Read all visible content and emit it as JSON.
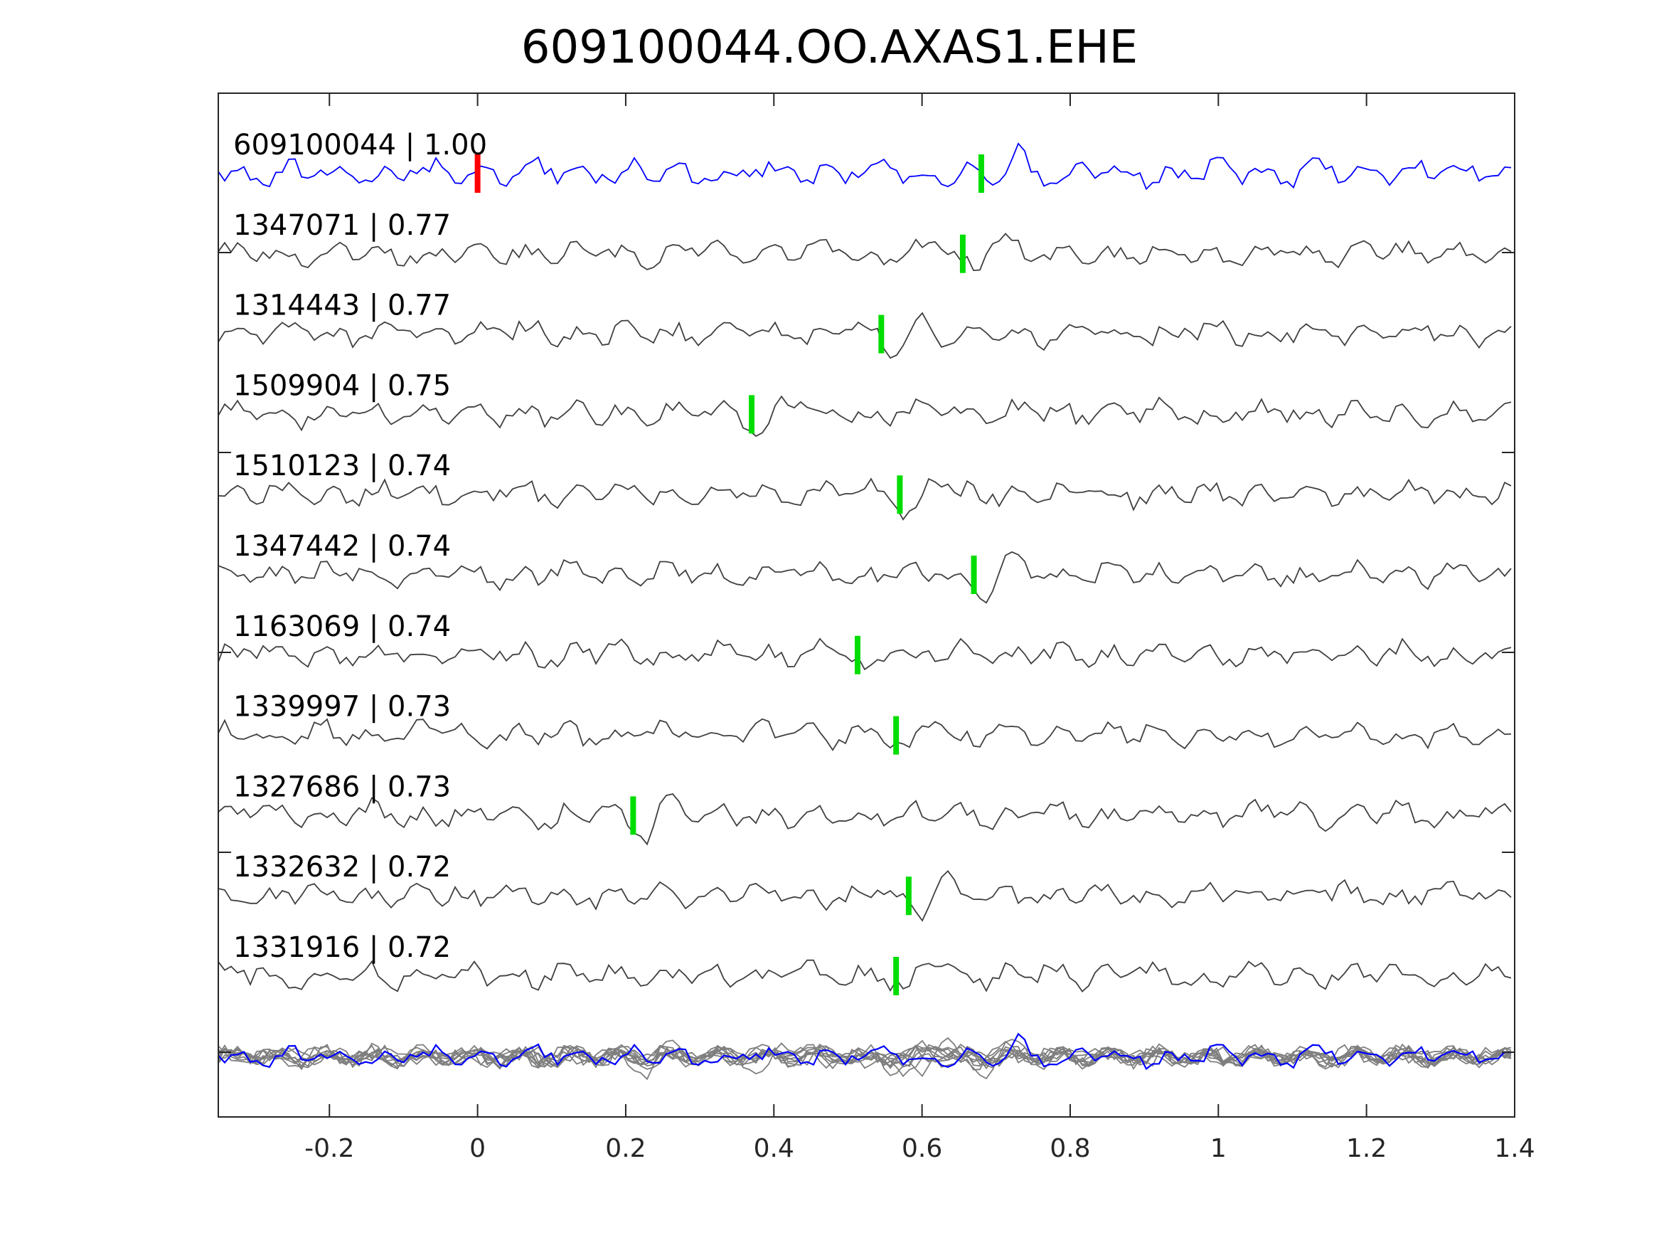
{
  "chart_data": {
    "type": "line",
    "title": "609100044.OO.AXAS1.EHE",
    "xlabel": "",
    "ylabel": "",
    "xlim": [
      -0.35,
      1.4
    ],
    "x_ticks": [
      "-0.2",
      "0",
      "0.2",
      "0.4",
      "0.6",
      "0.8",
      "1",
      "1.2",
      "1.4"
    ],
    "x_tick_values": [
      -0.2,
      0,
      0.2,
      0.4,
      0.6,
      0.8,
      1.0,
      1.2,
      1.4
    ],
    "grid": false,
    "colors": {
      "template": "#0000ff",
      "neighbor": "#404040",
      "stack": "#7f7f7f",
      "origin_pick": "#ff0000",
      "phase_pick": "#00dd00"
    },
    "series": [
      {
        "name": "609100044 | 1.00",
        "pick": 0.68,
        "origin": 0.0
      },
      {
        "name": "1347071 | 0.77",
        "pick": 0.655
      },
      {
        "name": "1314443 | 0.77",
        "pick": 0.545
      },
      {
        "name": "1509904 | 0.75",
        "pick": 0.37
      },
      {
        "name": "1510123 | 0.74",
        "pick": 0.57
      },
      {
        "name": "1347442 | 0.74",
        "pick": 0.67
      },
      {
        "name": "1163069 | 0.74",
        "pick": 0.513
      },
      {
        "name": "1339997 | 0.73",
        "pick": 0.565
      },
      {
        "name": "1327686 | 0.73",
        "pick": 0.21
      },
      {
        "name": "1332632 | 0.72",
        "pick": 0.582
      },
      {
        "name": "1331916 | 0.72",
        "pick": 0.565
      }
    ]
  }
}
